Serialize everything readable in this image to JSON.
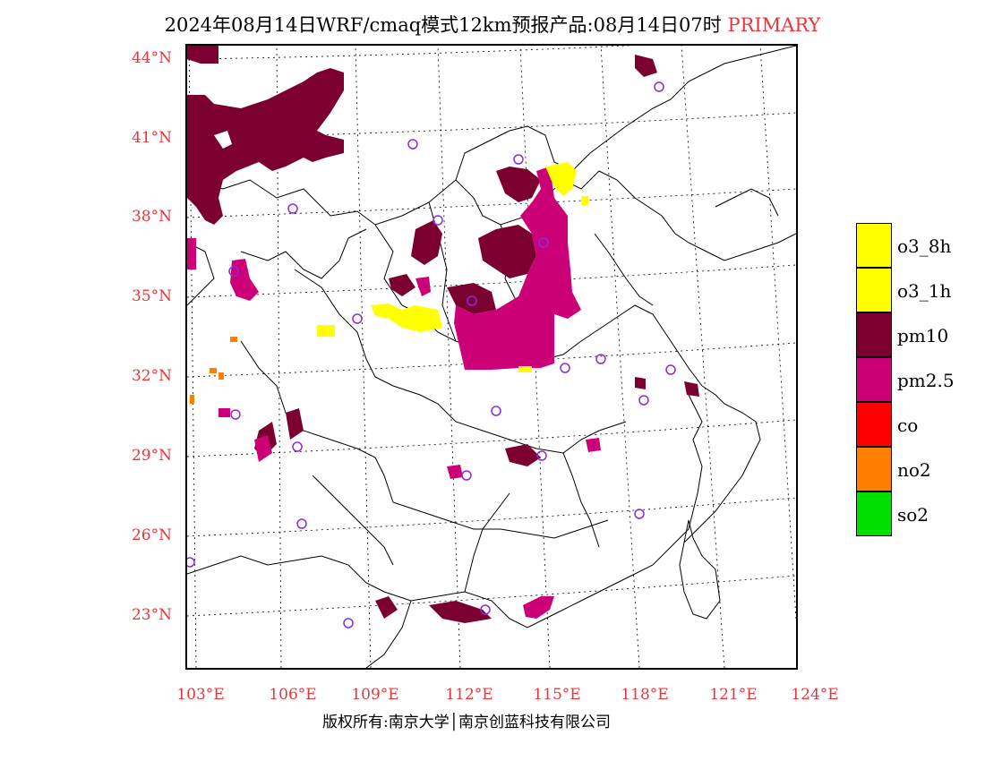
{
  "title": {
    "main": "2024年08月14日WRF/cmaq模式12km预报产品:08月14日07时",
    "tag": "PRIMARY"
  },
  "map": {
    "lat_labels": [
      "44°N",
      "41°N",
      "38°N",
      "35°N",
      "32°N",
      "29°N",
      "26°N",
      "23°N"
    ],
    "lon_labels": [
      "103°E",
      "106°E",
      "109°E",
      "112°E",
      "115°E",
      "118°E",
      "121°E",
      "124°E"
    ],
    "boundary_color": "#000000",
    "station_marker_color": "#8a2be2"
  },
  "legend": {
    "items": [
      {
        "label": "o3_8h",
        "color": "#ffff00"
      },
      {
        "label": "o3_1h",
        "color": "#ffff00"
      },
      {
        "label": "pm10",
        "color": "#7b0030"
      },
      {
        "label": "pm2.5",
        "color": "#cc0077"
      },
      {
        "label": "co",
        "color": "#ff0000"
      },
      {
        "label": "no2",
        "color": "#ff7f00"
      },
      {
        "label": "so2",
        "color": "#00e000"
      }
    ]
  },
  "footer": {
    "text": "版权所有:南京大学│南京创蓝科技有限公司"
  }
}
